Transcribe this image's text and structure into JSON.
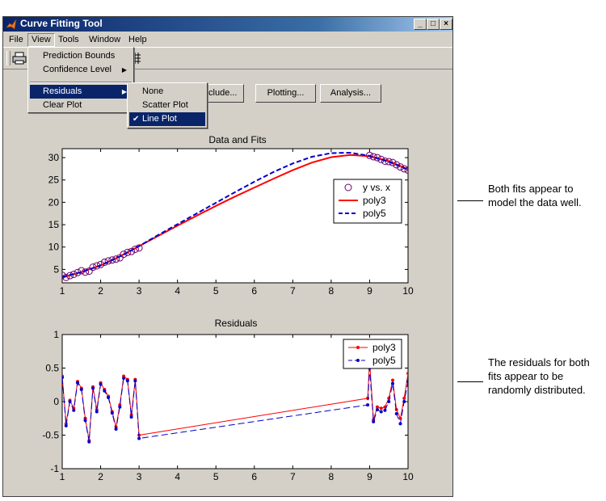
{
  "window": {
    "title": "Curve Fitting Tool",
    "controls": {
      "minimize": "_",
      "maximize": "□",
      "close": "×"
    }
  },
  "menubar": {
    "items": [
      "File",
      "View",
      "Tools",
      "Window",
      "Help"
    ],
    "open_item": "View"
  },
  "view_menu": {
    "items": [
      {
        "label": "Prediction Bounds"
      },
      {
        "label": "Confidence Level",
        "submenu_arrow": "▶"
      },
      {
        "label": "Residuals",
        "submenu_arrow": "▶",
        "highlighted": true
      },
      {
        "label": "Clear Plot"
      }
    ]
  },
  "residuals_submenu": {
    "items": [
      {
        "label": "None"
      },
      {
        "label": "Scatter Plot"
      },
      {
        "label": "Line Plot",
        "checked": true,
        "check_mark": "✔",
        "highlighted": true
      }
    ]
  },
  "buttons": {
    "exclude": "xclude...",
    "plotting": "Plotting...",
    "analysis": "Analysis..."
  },
  "icons": {
    "print": "print-icon",
    "grid": "grid-icon",
    "app": "matlab-icon"
  },
  "colors": {
    "poly3": "#ff0000",
    "poly5": "#0000cc",
    "data": "#660066",
    "highlight": "#0a246a"
  },
  "chart_data": [
    {
      "type": "line",
      "title": "Data and Fits",
      "title_visible_part": "Data and Fits",
      "xlim": [
        1,
        10
      ],
      "ylim": [
        2,
        32
      ],
      "xticks": [
        1,
        2,
        3,
        4,
        5,
        6,
        7,
        8,
        9,
        10
      ],
      "yticks": [
        5,
        10,
        15,
        20,
        25,
        30
      ],
      "legend": {
        "position": "right",
        "entries": [
          "y vs. x",
          "poly3",
          "poly5"
        ]
      },
      "series": [
        {
          "name": "y vs. x",
          "style": "circles",
          "x": [
            1.0,
            1.1,
            1.2,
            1.3,
            1.4,
            1.5,
            1.6,
            1.7,
            1.8,
            1.9,
            2.0,
            2.1,
            2.2,
            2.3,
            2.4,
            2.5,
            2.6,
            2.7,
            2.8,
            2.9,
            3.0,
            9.0,
            9.1,
            9.2,
            9.3,
            9.4,
            9.5,
            9.6,
            9.7,
            9.8,
            9.9,
            10.0
          ],
          "y": [
            3.7,
            3.2,
            3.6,
            3.9,
            4.3,
            4.7,
            4.4,
            4.6,
            5.5,
            5.8,
            6.1,
            6.6,
            6.9,
            7.1,
            7.3,
            7.6,
            8.4,
            8.8,
            9.0,
            9.5,
            9.8,
            30.5,
            30.2,
            30.0,
            29.6,
            29.2,
            29.1,
            28.9,
            28.4,
            27.9,
            27.5,
            27.2
          ]
        },
        {
          "name": "poly3",
          "style": "solid",
          "x": [
            1,
            1.5,
            2,
            2.5,
            3,
            3.5,
            4,
            4.5,
            5,
            5.5,
            6,
            6.5,
            7,
            7.5,
            8,
            8.5,
            9,
            9.5,
            10
          ],
          "y": [
            3.2,
            4.4,
            5.9,
            7.9,
            10.2,
            12.5,
            14.8,
            17.0,
            19.2,
            21.3,
            23.3,
            25.3,
            27.2,
            28.9,
            30.1,
            30.6,
            30.3,
            29.2,
            27.4
          ]
        },
        {
          "name": "poly5",
          "style": "dashed",
          "x": [
            1,
            1.5,
            2,
            2.5,
            3,
            3.5,
            4,
            4.5,
            5,
            5.5,
            6,
            6.5,
            7,
            7.5,
            8,
            8.5,
            9,
            9.5,
            10
          ],
          "y": [
            3.3,
            4.4,
            5.9,
            7.9,
            10.2,
            12.7,
            15.1,
            17.5,
            19.9,
            22.3,
            24.6,
            26.8,
            28.7,
            30.2,
            31.0,
            31.1,
            30.4,
            29.1,
            27.3
          ]
        }
      ]
    },
    {
      "type": "line",
      "title": "Residuals",
      "xlim": [
        1,
        10
      ],
      "ylim": [
        -1,
        1
      ],
      "xticks": [
        1,
        2,
        3,
        4,
        5,
        6,
        7,
        8,
        9,
        10
      ],
      "yticks": [
        -1,
        -0.5,
        0,
        0.5,
        1
      ],
      "legend": {
        "position": "top-right",
        "entries": [
          "poly3",
          "poly5"
        ]
      },
      "series": [
        {
          "name": "poly3",
          "style": "solid-dots",
          "x": [
            1.0,
            1.1,
            1.2,
            1.3,
            1.4,
            1.5,
            1.6,
            1.7,
            1.8,
            1.9,
            2.0,
            2.1,
            2.2,
            2.3,
            2.4,
            2.5,
            2.6,
            2.7,
            2.8,
            2.9,
            3.0,
            8.95,
            9.0,
            9.1,
            9.2,
            9.3,
            9.4,
            9.5,
            9.6,
            9.7,
            9.8,
            9.9,
            10.0
          ],
          "y": [
            0.38,
            -0.33,
            0.02,
            -0.1,
            0.3,
            0.2,
            -0.25,
            -0.58,
            0.22,
            -0.12,
            0.28,
            0.18,
            0.08,
            -0.15,
            -0.38,
            -0.05,
            0.38,
            0.33,
            -0.2,
            0.33,
            -0.5,
            0.05,
            0.62,
            -0.27,
            -0.08,
            -0.1,
            -0.08,
            0.05,
            0.32,
            -0.12,
            -0.25,
            0.05,
            0.42
          ]
        },
        {
          "name": "poly5",
          "style": "dashed-dots",
          "x": [
            1.0,
            1.1,
            1.2,
            1.3,
            1.4,
            1.5,
            1.6,
            1.7,
            1.8,
            1.9,
            2.0,
            2.1,
            2.2,
            2.3,
            2.4,
            2.5,
            2.6,
            2.7,
            2.8,
            2.9,
            3.0,
            8.95,
            9.0,
            9.1,
            9.2,
            9.3,
            9.4,
            9.5,
            9.6,
            9.7,
            9.8,
            9.9,
            10.0
          ],
          "y": [
            0.36,
            -0.36,
            0.0,
            -0.13,
            0.28,
            0.18,
            -0.28,
            -0.6,
            0.2,
            -0.15,
            0.26,
            0.16,
            0.06,
            -0.17,
            -0.41,
            -0.08,
            0.35,
            0.31,
            -0.23,
            0.31,
            -0.55,
            -0.05,
            0.5,
            -0.3,
            -0.12,
            -0.15,
            -0.13,
            0.0,
            0.27,
            -0.18,
            -0.33,
            0.0,
            0.3
          ]
        }
      ]
    }
  ],
  "annotations": {
    "fits_note": "Both fits appear to model the data well.",
    "fits_lines": [
      "Both fits appear to",
      "model the data well."
    ],
    "residuals_note": "The residuals for both fits appear to be randomly distributed.",
    "residuals_lines": [
      "The residuals for both",
      "fits appear to be",
      "randomly distributed."
    ]
  }
}
